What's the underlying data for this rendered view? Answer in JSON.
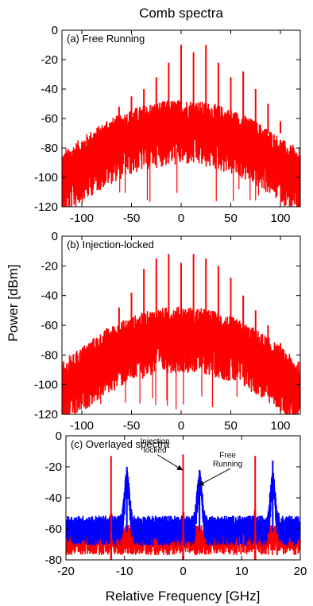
{
  "chart_data": {
    "title": "Comb spectra",
    "ylabel": "Power [dBm]",
    "xlabel": "Relative Frequency [GHz]",
    "panels": [
      {
        "type": "line",
        "label": "(a) Free Running",
        "xlim": [
          -120,
          120
        ],
        "ylim": [
          -120,
          0
        ],
        "xticks": [
          -100,
          -50,
          0,
          50,
          100
        ],
        "yticks": [
          0,
          -20,
          -40,
          -60,
          -80,
          -100,
          -120
        ],
        "series": [
          {
            "color": "#ff0000",
            "comb_spacing": 12.5,
            "floor_peak": -60,
            "floor_edge": -95,
            "lines": [
              {
                "x": -112.5,
                "y": -90
              },
              {
                "x": -100,
                "y": -80
              },
              {
                "x": -87.5,
                "y": -72
              },
              {
                "x": -75,
                "y": -62
              },
              {
                "x": -62.5,
                "y": -52
              },
              {
                "x": -50,
                "y": -45
              },
              {
                "x": -37.5,
                "y": -40
              },
              {
                "x": -25,
                "y": -32
              },
              {
                "x": -12.5,
                "y": -22
              },
              {
                "x": 0,
                "y": -10
              },
              {
                "x": 12.5,
                "y": -15
              },
              {
                "x": 25,
                "y": -10
              },
              {
                "x": 37.5,
                "y": -22
              },
              {
                "x": 50,
                "y": -32
              },
              {
                "x": 62.5,
                "y": -28
              },
              {
                "x": 75,
                "y": -40
              },
              {
                "x": 87.5,
                "y": -50
              },
              {
                "x": 100,
                "y": -62
              },
              {
                "x": 112.5,
                "y": -78
              }
            ]
          }
        ]
      },
      {
        "type": "line",
        "label": "(b) Injection-locked",
        "xlim": [
          -120,
          120
        ],
        "ylim": [
          -120,
          0
        ],
        "xticks": [
          -100,
          -50,
          0,
          50,
          100
        ],
        "yticks": [
          0,
          -20,
          -40,
          -60,
          -80,
          -100,
          -120
        ],
        "series": [
          {
            "color": "#ff0000",
            "comb_spacing": 12.5,
            "floor_peak": -60,
            "floor_edge": -97,
            "lines": [
              {
                "x": -112.5,
                "y": -92
              },
              {
                "x": -100,
                "y": -82
              },
              {
                "x": -87.5,
                "y": -76
              },
              {
                "x": -75,
                "y": -62
              },
              {
                "x": -62.5,
                "y": -48
              },
              {
                "x": -50,
                "y": -38
              },
              {
                "x": -37.5,
                "y": -22
              },
              {
                "x": -25,
                "y": -15
              },
              {
                "x": -12.5,
                "y": -12
              },
              {
                "x": 0,
                "y": -18
              },
              {
                "x": 12.5,
                "y": -12
              },
              {
                "x": 25,
                "y": -15
              },
              {
                "x": 37.5,
                "y": -20
              },
              {
                "x": 50,
                "y": -28
              },
              {
                "x": 62.5,
                "y": -40
              },
              {
                "x": 75,
                "y": -50
              },
              {
                "x": 87.5,
                "y": -60
              },
              {
                "x": 100,
                "y": -72
              },
              {
                "x": 112.5,
                "y": -90
              }
            ]
          }
        ]
      },
      {
        "type": "line",
        "label": "(c) Overlayed spectra",
        "xlim": [
          -20,
          20
        ],
        "ylim": [
          -80,
          0
        ],
        "xticks": [
          -20,
          -10,
          0,
          10,
          20
        ],
        "yticks": [
          0,
          -20,
          -40,
          -60,
          -80
        ],
        "series": [
          {
            "name": "Injection locked",
            "color": "#ff0000",
            "floor": -63,
            "lines": [
              {
                "x": -12.3,
                "y": -13
              },
              {
                "x": 0,
                "y": -12
              },
              {
                "x": 12.3,
                "y": -13
              }
            ]
          },
          {
            "name": "Free Running",
            "color": "#0000ff",
            "floor": -57,
            "lines": [
              {
                "x": -9.6,
                "y": -20
              },
              {
                "x": 2.8,
                "y": -22
              },
              {
                "x": 15.3,
                "y": -16
              }
            ]
          }
        ],
        "annotations": [
          {
            "text": [
              "Injection",
              "locked"
            ],
            "points_to": {
              "x": 0,
              "y": -22
            }
          },
          {
            "text": [
              "Free",
              "Running"
            ],
            "points_to": {
              "x": 2.8,
              "y": -32
            }
          }
        ]
      }
    ]
  }
}
